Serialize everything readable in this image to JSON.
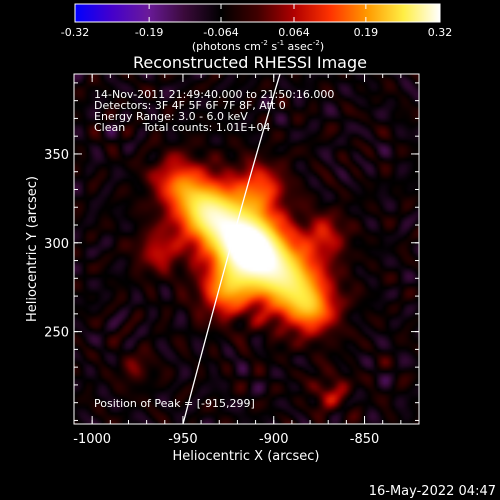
{
  "colorbar": {
    "tick_labels": [
      "-0.32",
      "-0.19",
      "-0.064",
      "0.064",
      "0.19",
      "0.32"
    ],
    "tick_values": [
      -0.32,
      -0.19,
      -0.064,
      0.064,
      0.19,
      0.32
    ],
    "range": [
      -0.32,
      0.32
    ],
    "units_prefix": "(photons cm",
    "units_sup1": "-2",
    "units_mid1": " s",
    "units_sup2": "-1",
    "units_mid2": " asec",
    "units_sup3": "-2",
    "units_suffix": ")",
    "palette": [
      "#0000ff",
      "#4400cc",
      "#6a1a9a",
      "#3a0a3a",
      "#000000",
      "#400000",
      "#b00000",
      "#ff3300",
      "#ff9900",
      "#ffee44",
      "#ffffff"
    ]
  },
  "image": {
    "title": "Reconstructed RHESSI Image",
    "info_lines": [
      "14-Nov-2011 21:49:40.000 to 21:50:16.000",
      "Detectors: 3F 4F 5F 6F 7F 8F, Att 0",
      "Energy Range: 3.0 - 6.0 keV",
      "Clean     Total counts: 1.01E+04"
    ],
    "peak_text": "Position of Peak = [-915,299]",
    "peak": [
      -915,
      299
    ]
  },
  "axes": {
    "xlabel": "Heliocentric X (arcsec)",
    "ylabel": "Heliocentric Y (arcsec)",
    "xlim": [
      -1010,
      -820
    ],
    "ylim": [
      198,
      395
    ],
    "xticks": [
      -1000,
      -950,
      -900,
      -850
    ],
    "xtick_labels": [
      "-1000",
      "-950",
      "-900",
      "-850"
    ],
    "yticks": [
      250,
      300,
      350
    ],
    "ytick_labels": [
      "250",
      "300",
      "350"
    ]
  },
  "footer": {
    "timestamp": "16-May-2022 04:47"
  }
}
